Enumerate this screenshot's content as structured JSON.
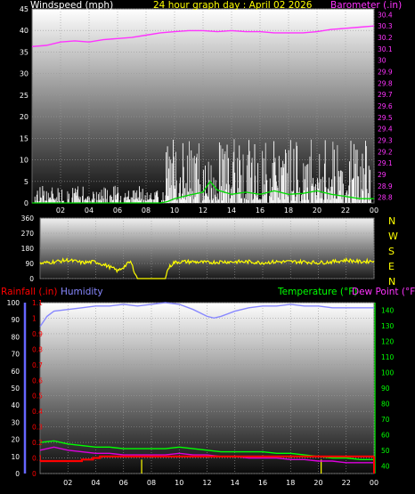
{
  "header": {
    "wind_label": "Windspeed (mph)",
    "title": "24 hour graph day : April 02 2026",
    "baro_label": "Barometer (.in)",
    "rain_label": "Rainfall (.in)",
    "hum_label": "Humidity",
    "temp_label": "Temperature (°F)",
    "dew_label": "Dew Point (°F)"
  },
  "compass": [
    "N",
    "W",
    "S",
    "E",
    "N"
  ],
  "colors": {
    "wind": "#ffffff",
    "gust": "#dddddd",
    "wind_avg": "#00dd00",
    "baro": "#ff33ff",
    "dir": "#ffff00",
    "rain": "#ff0000",
    "rain_rate": "#ffff00",
    "humidity": "#8888ff",
    "temperature": "#00ff00",
    "dewpoint": "#dd00dd"
  },
  "chart_data": [
    {
      "type": "line",
      "name": "wind-barometer",
      "x_ticks": [
        "02",
        "04",
        "06",
        "08",
        "10",
        "12",
        "14",
        "16",
        "18",
        "20",
        "22",
        "00"
      ],
      "y_left_ticks": [
        "0",
        "5",
        "10",
        "15",
        "20",
        "25",
        "30",
        "35",
        "40",
        "45"
      ],
      "y_left_range": [
        0,
        45
      ],
      "y_right_ticks": [
        "28.8",
        "28.9",
        "29",
        "29.1",
        "29.2",
        "29.3",
        "29.4",
        "29.5",
        "29.6",
        "29.7",
        "29.8",
        "29.9",
        "30",
        "30.1",
        "30.2",
        "30.3",
        "30.4"
      ],
      "y_right_range": [
        28.75,
        30.45
      ],
      "barometer": {
        "x": [
          0,
          1,
          2,
          3,
          4,
          5,
          6,
          7,
          8,
          9,
          10,
          11,
          12,
          13,
          14,
          15,
          16,
          17,
          18,
          19,
          20,
          21,
          22,
          23,
          24
        ],
        "y": [
          30.12,
          30.13,
          30.16,
          30.17,
          30.16,
          30.18,
          30.19,
          30.2,
          30.22,
          30.24,
          30.25,
          30.26,
          30.26,
          30.25,
          30.26,
          30.25,
          30.25,
          30.24,
          30.24,
          30.24,
          30.25,
          30.27,
          30.28,
          30.29,
          30.3
        ]
      },
      "wind_activity": [
        {
          "start": 0.2,
          "end": 8.9,
          "peak": 4
        },
        {
          "start": 9.1,
          "end": 23.8,
          "peak": 15
        }
      ],
      "wind_avg": {
        "x": [
          0,
          2,
          4,
          6,
          8,
          9,
          9.5,
          10,
          11,
          12,
          12.5,
          13,
          14,
          15,
          16,
          17,
          18,
          19,
          20,
          21,
          22,
          23,
          24
        ],
        "y": [
          0,
          0,
          0,
          0,
          0,
          0,
          0.3,
          1,
          1.8,
          2.5,
          5,
          3,
          2,
          2.5,
          2,
          2.8,
          2,
          2.2,
          2.8,
          2,
          1.5,
          1,
          1
        ]
      }
    },
    {
      "type": "line",
      "name": "wind-direction",
      "x_ticks": [
        "02",
        "04",
        "06",
        "08",
        "10",
        "12",
        "14",
        "16",
        "18",
        "20",
        "22",
        "00"
      ],
      "y_ticks": [
        "0",
        "90",
        "180",
        "270",
        "360"
      ],
      "y_range": [
        0,
        360
      ],
      "direction": {
        "x": [
          0,
          1,
          2,
          3,
          4,
          5,
          5.6,
          6,
          6.5,
          7,
          8,
          9,
          9.2,
          9.6,
          10,
          11,
          12,
          13,
          14,
          15,
          16,
          17,
          18,
          19,
          20,
          21,
          22,
          23,
          24
        ],
        "y": [
          90,
          100,
          110,
          95,
          100,
          70,
          45,
          70,
          100,
          0,
          0,
          0,
          60,
          95,
          100,
          100,
          95,
          100,
          100,
          100,
          95,
          100,
          100,
          100,
          95,
          100,
          110,
          100,
          105
        ]
      }
    },
    {
      "type": "line",
      "name": "rain-humidity-temperature",
      "x_ticks": [
        "02",
        "04",
        "06",
        "08",
        "10",
        "12",
        "14",
        "16",
        "18",
        "20",
        "22",
        "00"
      ],
      "humidity_ticks": [
        "0",
        "10",
        "20",
        "30",
        "40",
        "50",
        "60",
        "70",
        "80",
        "90",
        "100"
      ],
      "humidity_range": [
        0,
        100
      ],
      "rain_ticks": [
        "0",
        "0.1",
        "0.2",
        "0.3",
        "0.4",
        "0.5",
        "0.6",
        "0.7",
        "0.8",
        "0.9",
        "1",
        "1.1"
      ],
      "rain_range": [
        0,
        1.1
      ],
      "temp_ticks": [
        "40",
        "50",
        "60",
        "70",
        "80",
        "90",
        "100",
        "110",
        "120",
        "130",
        "140"
      ],
      "temp_range": [
        35,
        145
      ],
      "humidity": {
        "x": [
          0,
          0.5,
          1,
          2,
          3,
          4,
          5,
          6,
          7,
          8,
          9,
          10,
          11,
          12,
          12.5,
          13,
          14,
          15,
          16,
          17,
          18,
          19,
          20,
          21,
          22,
          23,
          24
        ],
        "y": [
          86,
          92,
          95,
          96,
          97,
          98,
          98,
          99,
          98,
          99,
          100,
          99,
          96,
          92,
          91,
          92,
          95,
          97,
          98,
          98,
          99,
          98,
          98,
          97,
          97,
          97,
          97
        ]
      },
      "temperature": {
        "x": [
          0,
          1,
          2,
          3,
          4,
          5,
          6,
          7,
          8,
          9,
          10,
          11,
          12,
          13,
          14,
          15,
          16,
          17,
          18,
          19,
          20,
          21,
          22,
          23,
          24
        ],
        "y": [
          55,
          56,
          54,
          53,
          52,
          52,
          51,
          51,
          51,
          51,
          52,
          51,
          50,
          49,
          49,
          49,
          49,
          48,
          48,
          47,
          46,
          45,
          45,
          44,
          44
        ]
      },
      "dewpoint": {
        "x": [
          0,
          1,
          2,
          3,
          4,
          5,
          6,
          7,
          8,
          9,
          10,
          11,
          12,
          13,
          14,
          15,
          16,
          17,
          18,
          19,
          20,
          21,
          22,
          23,
          24
        ],
        "y": [
          50,
          52,
          50,
          49,
          48,
          48,
          47,
          47,
          47,
          47,
          48,
          47,
          47,
          46,
          46,
          45,
          45,
          45,
          44,
          44,
          43,
          43,
          42,
          42,
          42
        ]
      },
      "rain_daily": {
        "x": [
          0,
          2.5,
          3,
          3.8,
          4.3,
          24
        ],
        "y": [
          0.08,
          0.08,
          0.09,
          0.1,
          0.11,
          0.11
        ]
      },
      "rain_rate_events": [
        7.3,
        20.2
      ]
    }
  ]
}
